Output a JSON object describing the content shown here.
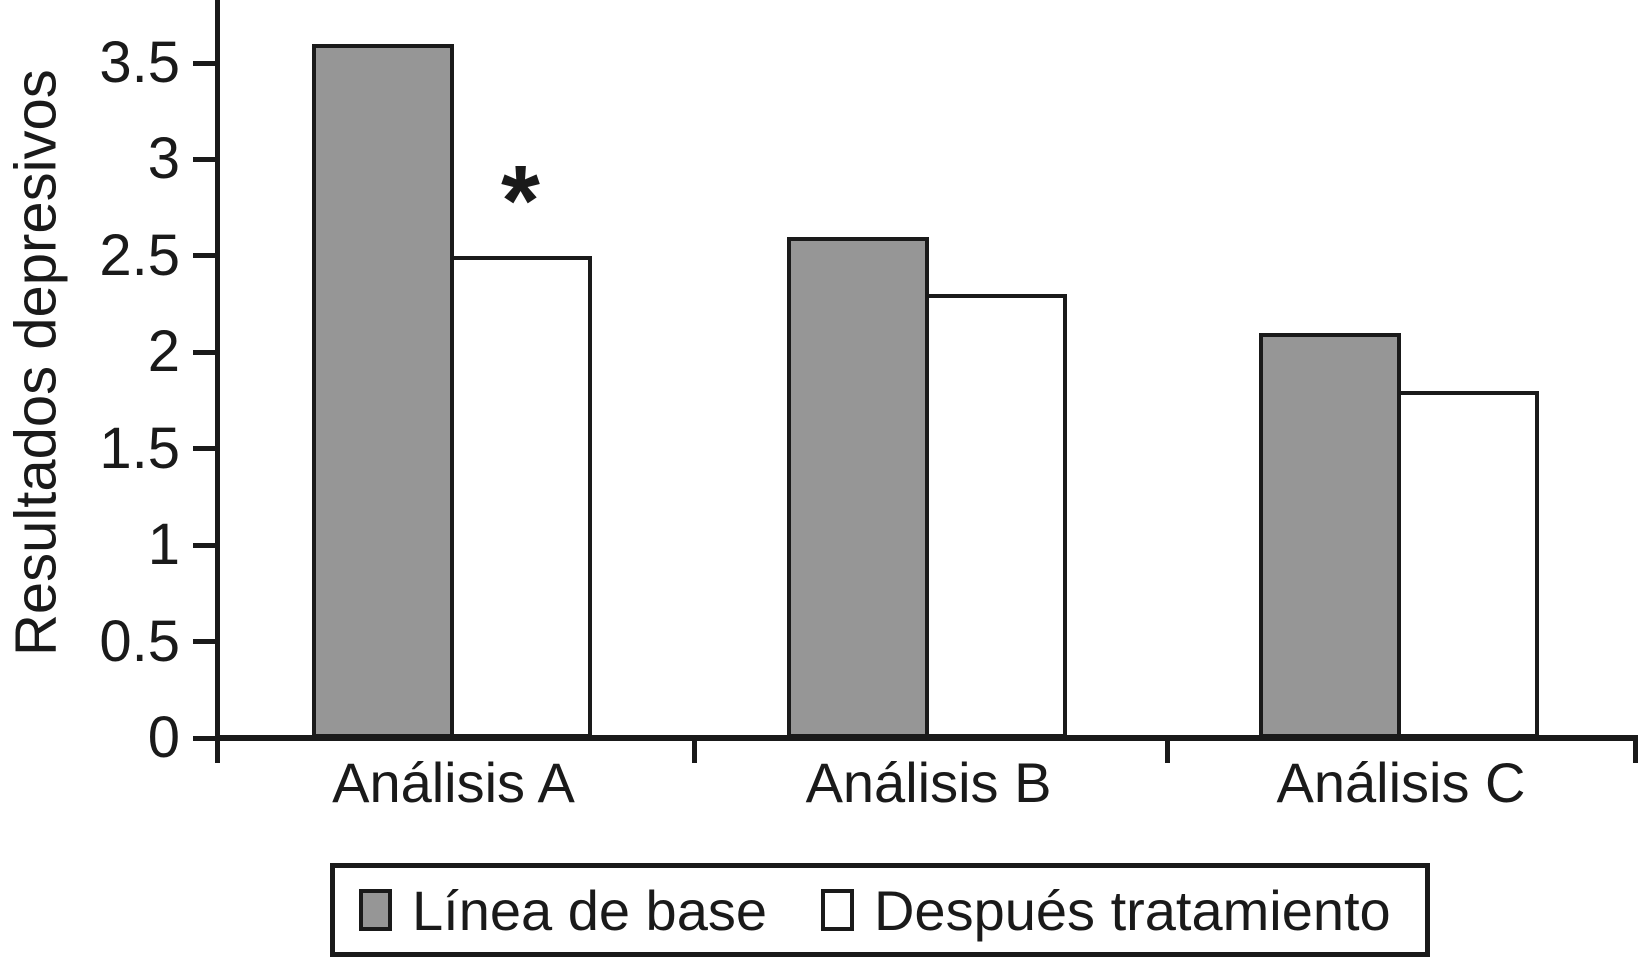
{
  "figure": {
    "background": "#ffffff",
    "line_color": "#1a1a1a"
  },
  "chart_data": {
    "type": "bar",
    "title": "",
    "xlabel": "",
    "ylabel": "Resultados depresivos",
    "categories": [
      "Análisis A",
      "Análisis B",
      "Análisis C"
    ],
    "series": [
      {
        "name": "Línea de base",
        "color": "#969696",
        "values": [
          3.6,
          2.6,
          2.1
        ]
      },
      {
        "name": "Después tratamiento",
        "color": "#ffffff",
        "values": [
          2.5,
          2.3,
          1.8
        ]
      }
    ],
    "ylim": [
      0,
      3.85
    ],
    "yticks": [
      0,
      0.5,
      1,
      1.5,
      2,
      2.5,
      3,
      3.5
    ],
    "ytick_labels": [
      "0",
      "0.5",
      "1",
      "1.5",
      "2",
      "2.5",
      "3",
      "3.5"
    ],
    "grid": false,
    "legend_position": "bottom",
    "annotations": [
      {
        "text": "*",
        "category_index": 0,
        "series_index": 1,
        "value": 2.9
      }
    ]
  }
}
